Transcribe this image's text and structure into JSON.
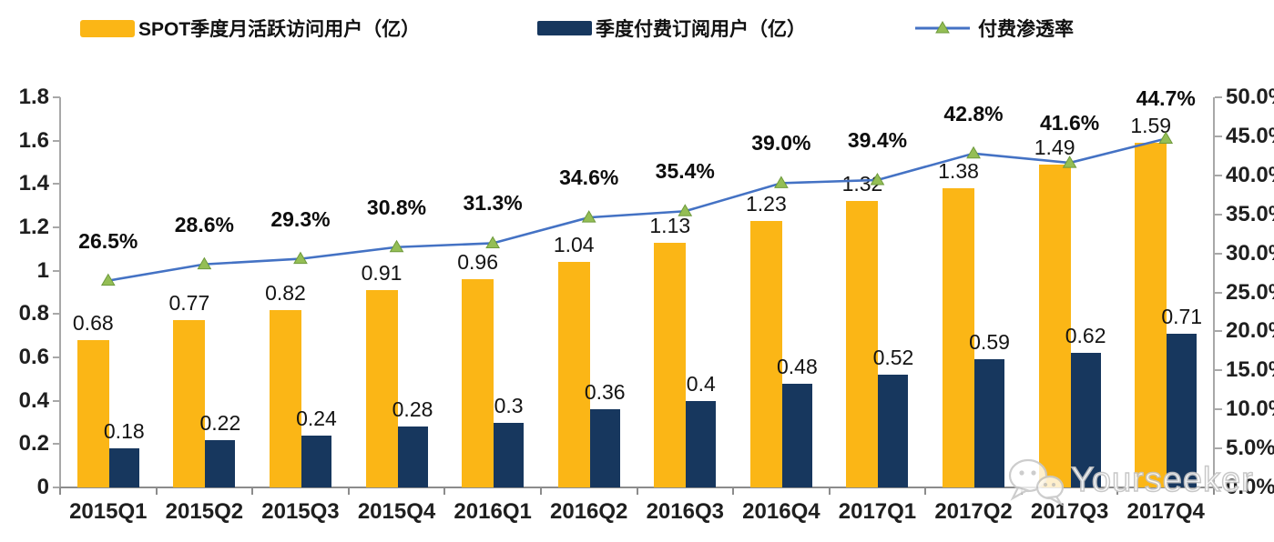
{
  "colors": {
    "mau": "#FBB616",
    "subs": "#17375E",
    "line": "#4472C4",
    "marker": "#94BE55",
    "marker_edge": "#6E9A3C",
    "spine": "#A8A8A8",
    "axis_line": "#8C8C8C",
    "watermark_stroke": "#C9C9C9"
  },
  "legend": {
    "items": [
      {
        "label": "SPOT季度月活跃访问用户（亿）",
        "type": "bar",
        "color": "#FBB616"
      },
      {
        "label": "季度付费订阅用户（亿）",
        "type": "bar",
        "color": "#17375E"
      },
      {
        "label": "付费渗透率",
        "type": "line",
        "color": "#4472C4",
        "marker_color": "#94BE55"
      }
    ]
  },
  "watermark": {
    "text": "Yourseeker",
    "icon": "wechat-icon"
  },
  "chart_data": {
    "type": "bar",
    "subtype": "grouped-bar-with-line-combo",
    "title": "",
    "xlabel": "",
    "ylabel_left": "",
    "ylabel_right": "",
    "grid": false,
    "legend_position": "top",
    "categories": [
      "2015Q1",
      "2015Q2",
      "2015Q3",
      "2015Q4",
      "2016Q1",
      "2016Q2",
      "2016Q3",
      "2016Q4",
      "2017Q1",
      "2017Q2",
      "2017Q3",
      "2017Q4"
    ],
    "series": [
      {
        "name": "SPOT季度月活跃访问用户（亿）",
        "type": "bar",
        "axis": "left",
        "color": "#FBB616",
        "values": [
          0.68,
          0.77,
          0.82,
          0.91,
          0.96,
          1.04,
          1.13,
          1.23,
          1.32,
          1.38,
          1.49,
          1.59
        ],
        "labels": [
          "0.68",
          "0.77",
          "0.82",
          "0.91",
          "0.96",
          "1.04",
          "1.13",
          "1.23",
          "1.32",
          "1.38",
          "1.49",
          "1.59"
        ]
      },
      {
        "name": "季度付费订阅用户（亿）",
        "type": "bar",
        "axis": "left",
        "color": "#17375E",
        "values": [
          0.18,
          0.22,
          0.24,
          0.28,
          0.3,
          0.36,
          0.4,
          0.48,
          0.52,
          0.59,
          0.62,
          0.71
        ],
        "labels": [
          "0.18",
          "0.22",
          "0.24",
          "0.28",
          "0.3",
          "0.36",
          "0.4",
          "0.48",
          "0.52",
          "0.59",
          "0.62",
          "0.71"
        ]
      },
      {
        "name": "付费渗透率",
        "type": "line",
        "axis": "right",
        "color": "#4472C4",
        "marker": "triangle",
        "marker_color": "#94BE55",
        "values_pct": [
          26.5,
          28.6,
          29.3,
          30.8,
          31.3,
          34.6,
          35.4,
          39.0,
          39.4,
          42.8,
          41.6,
          44.7
        ],
        "labels": [
          "26.5%",
          "28.6%",
          "29.3%",
          "30.8%",
          "31.3%",
          "34.6%",
          "35.4%",
          "39.0%",
          "39.4%",
          "42.8%",
          "41.6%",
          "44.7%"
        ]
      }
    ],
    "left_axis": {
      "min": 0,
      "max": 1.8,
      "step": 0.2,
      "ticks": [
        "0",
        "0.2",
        "0.4",
        "0.6",
        "0.8",
        "1",
        "1.2",
        "1.4",
        "1.6",
        "1.8"
      ]
    },
    "right_axis": {
      "min": 0,
      "max": 50,
      "step": 5,
      "ticks": [
        "0.0%",
        "5.0%",
        "10.0%",
        "15.0%",
        "20.0%",
        "25.0%",
        "30.0%",
        "35.0%",
        "40.0%",
        "45.0%",
        "50.0%"
      ]
    }
  }
}
